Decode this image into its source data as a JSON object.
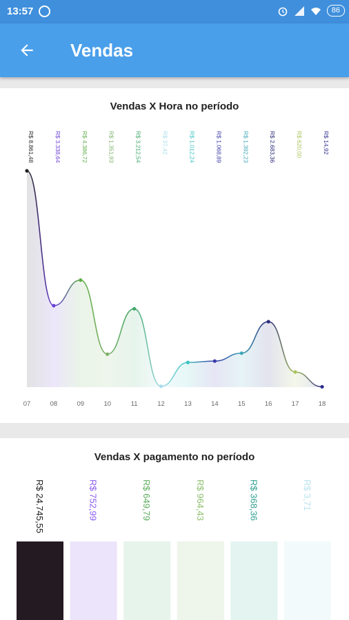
{
  "status_bar": {
    "time": "13:57",
    "battery": "86",
    "icons": [
      "whatsapp-icon",
      "alarm-icon",
      "signal-icon",
      "wifi-icon",
      "battery-icon"
    ]
  },
  "app_bar": {
    "title": "Vendas",
    "back_icon": "arrow-back-icon"
  },
  "colors": {
    "status_bar": "#3f8fdc",
    "app_bar": "#4a9fea"
  },
  "charts": [
    {
      "title": "Vendas X Hora no período",
      "chart_data": {
        "type": "line",
        "categories": [
          "07",
          "08",
          "09",
          "10",
          "11",
          "12",
          "13",
          "14",
          "15",
          "16",
          "17",
          "18"
        ],
        "values": [
          8861.48,
          3338.64,
          4386.72,
          1351.93,
          3212.54,
          37.42,
          1012.24,
          1068.89,
          1392.23,
          2683.36,
          620.0,
          14.92
        ],
        "value_labels": [
          "R$ 8.861,48",
          "R$ 3.338,64",
          "R$ 4.386,72",
          "R$ 1.351,93",
          "R$ 3.212,54",
          "R$ 37,42",
          "R$ 1.012,24",
          "R$ 1.068,89",
          "R$ 1.392,23",
          "R$ 2.683,36",
          "R$ 620,00",
          "R$ 14,92"
        ],
        "colors": [
          "#222222",
          "#6a3fd6",
          "#5fae4a",
          "#7fb26a",
          "#41a86a",
          "#a9dde9",
          "#3cc3c2",
          "#3a3aa8",
          "#3fa6b8",
          "#2b2b7a",
          "#a9c45a",
          "#2d2d8c"
        ],
        "xlabel": "",
        "ylabel": ""
      }
    },
    {
      "title": "Vendas X pagamento no período",
      "chart_data": {
        "type": "bar",
        "values": [
          24745.55,
          752.99,
          649.79,
          964.43,
          368.36,
          3.71
        ],
        "value_labels": [
          "R$ 24.745,55",
          "R$ 752,99",
          "R$ 649,79",
          "R$ 964,43",
          "R$ 368,36",
          "R$ 3,71"
        ],
        "label_colors": [
          "#222222",
          "#8a5cf0",
          "#5fae5f",
          "#8fbf6f",
          "#2f9f8f",
          "#b9e3ee"
        ],
        "bar_colors": [
          "#231a22",
          "#ece4fb",
          "#e7f4ec",
          "#eef5ea",
          "#e3f4f1",
          "#f3fafc"
        ]
      }
    }
  ]
}
